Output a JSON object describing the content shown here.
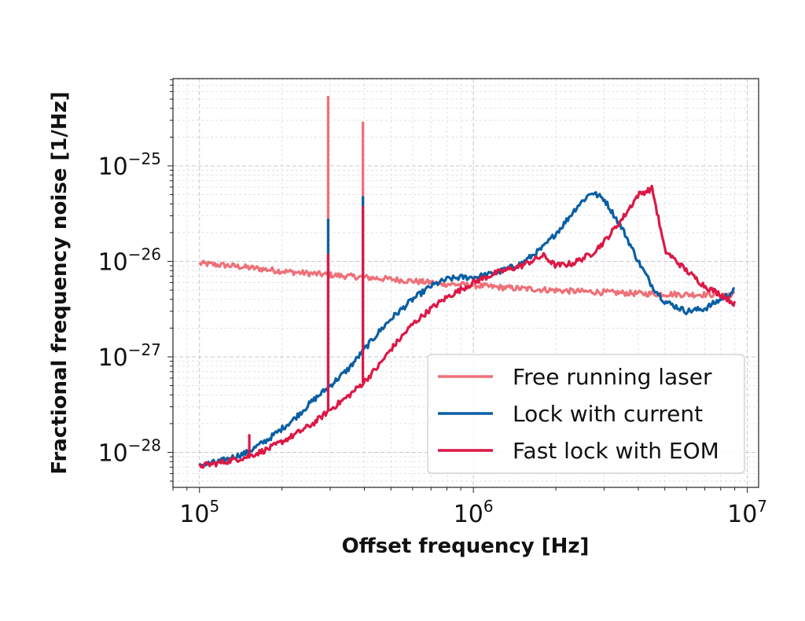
{
  "chart_data": {
    "type": "line",
    "title": "",
    "xlabel": "Offset frequency [Hz]",
    "ylabel": "Fractional frequency noise [1/Hz]",
    "xscale": "log",
    "yscale": "log",
    "xlim": [
      80000,
      11000000
    ],
    "ylim": [
      4.3e-29,
      8.2e-25
    ],
    "grid": "major and minor, dashed light gray",
    "legend_position": "lower-right",
    "x_ticks": [
      {
        "value": 100000,
        "base": "10",
        "exp": "5"
      },
      {
        "value": 1000000,
        "base": "10",
        "exp": "6"
      },
      {
        "value": 10000000,
        "base": "10",
        "exp": "7"
      }
    ],
    "y_ticks": [
      {
        "value": 1e-28,
        "base": "10",
        "exp": "−28"
      },
      {
        "value": 1e-27,
        "base": "10",
        "exp": "−27"
      },
      {
        "value": 1e-26,
        "base": "10",
        "exp": "−26"
      },
      {
        "value": 1e-25,
        "base": "10",
        "exp": "−25"
      }
    ],
    "series": [
      {
        "name": "Free running laser",
        "color": "#ee7078",
        "x": [
          100000,
          130000,
          170000,
          220000,
          300000,
          400000,
          500000,
          650000,
          800000,
          1000000,
          1300000,
          1700000,
          2200000,
          3000000,
          4000000,
          5000000,
          6000000,
          7000000,
          8000000,
          9000000
        ],
        "y": [
          9.5e-27,
          9e-27,
          8.3e-27,
          7.7e-27,
          7.2e-27,
          6.8e-27,
          6.5e-27,
          6.1e-27,
          5.8e-27,
          5.6e-27,
          5.3e-27,
          5.1e-27,
          4.9e-27,
          4.75e-27,
          4.6e-27,
          4.55e-27,
          4.5e-27,
          4.5e-27,
          4.5e-27,
          4.5e-27
        ],
        "spikes": [
          {
            "x": 295000,
            "peak": 5.4e-25
          },
          {
            "x": 395000,
            "peak": 2.9e-25
          }
        ]
      },
      {
        "name": "Lock with current",
        "color": "#0a5fa3",
        "x": [
          100000,
          120000,
          150000,
          180000,
          220000,
          260000,
          300000,
          350000,
          400000,
          450000,
          500000,
          600000,
          700000,
          800000,
          900000,
          1000000,
          1200000,
          1500000,
          1800000,
          2100000,
          2400000,
          2700000,
          3000000,
          3500000,
          4000000,
          4500000,
          5000000,
          6000000,
          7000000,
          8000000,
          9000000
        ],
        "y": [
          7.3e-29,
          8.1e-29,
          1e-28,
          1.4e-28,
          2.2e-28,
          3.5e-28,
          5e-28,
          7.5e-28,
          1.2e-27,
          1.8e-27,
          2.5e-27,
          4e-27,
          5.5e-27,
          6.5e-27,
          6.8e-27,
          6.8e-27,
          7.5e-27,
          9.5e-27,
          1.4e-26,
          2.3e-26,
          3.8e-26,
          5.3e-26,
          4.5e-26,
          2.2e-26,
          1e-26,
          5.5e-27,
          3.8e-27,
          3e-27,
          3.2e-27,
          4e-27,
          5e-27
        ],
        "spikes": [
          {
            "x": 295000,
            "peak": 2.8e-26
          },
          {
            "x": 395000,
            "peak": 4.8e-26
          }
        ]
      },
      {
        "name": "Fast lock with EOM",
        "color": "#dc1846",
        "x": [
          100000,
          120000,
          150000,
          180000,
          220000,
          260000,
          300000,
          350000,
          400000,
          450000,
          500000,
          600000,
          700000,
          800000,
          1000000,
          1200000,
          1500000,
          1800000,
          2000000,
          2300000,
          2700000,
          3000000,
          3500000,
          4000000,
          4500000,
          5000000,
          6000000,
          7000000,
          8000000,
          9000000
        ],
        "y": [
          7.2e-29,
          7.8e-29,
          9e-29,
          1.1e-28,
          1.5e-28,
          2e-28,
          2.8e-28,
          3.9e-28,
          5.5e-28,
          8e-28,
          1.2e-27,
          2.2e-27,
          3.2e-27,
          4.2e-27,
          6e-27,
          7.5e-27,
          9e-27,
          1.15e-26,
          9e-27,
          9.5e-27,
          1.2e-26,
          1.6e-26,
          2.8e-26,
          5e-26,
          5.8e-26,
          1.3e-26,
          8e-27,
          5.5e-27,
          4.5e-27,
          3.6e-27
        ],
        "spikes": [
          {
            "x": 152000,
            "peak": 1.55e-28
          },
          {
            "x": 295000,
            "peak": 1.2e-26
          },
          {
            "x": 395000,
            "peak": 3.8e-26
          }
        ]
      }
    ]
  }
}
